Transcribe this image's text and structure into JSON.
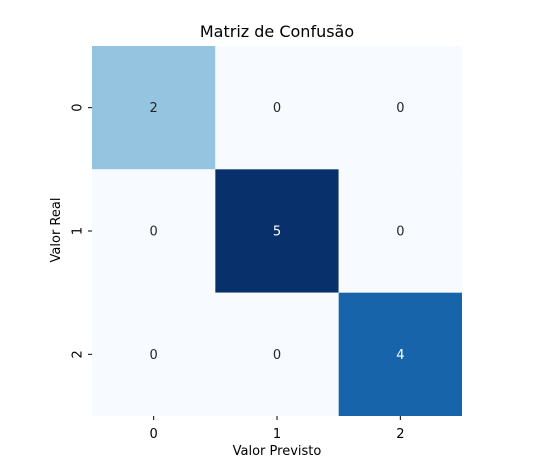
{
  "chart_data": {
    "type": "heatmap",
    "title": "Matriz de Confusão",
    "xlabel": "Valor Previsto",
    "ylabel": "Valor Real",
    "x_categories": [
      "0",
      "1",
      "2"
    ],
    "y_categories": [
      "0",
      "1",
      "2"
    ],
    "values": [
      [
        2,
        0,
        0
      ],
      [
        0,
        5,
        0
      ],
      [
        0,
        0,
        4
      ]
    ],
    "color_scale": "Blues",
    "vmin": 0,
    "vmax": 5,
    "colorbar": false,
    "grid": false
  },
  "colors": {
    "low": "#f7fbff",
    "high": "#08306b",
    "text_dark": "#262626",
    "text_light": "#ffffff"
  }
}
